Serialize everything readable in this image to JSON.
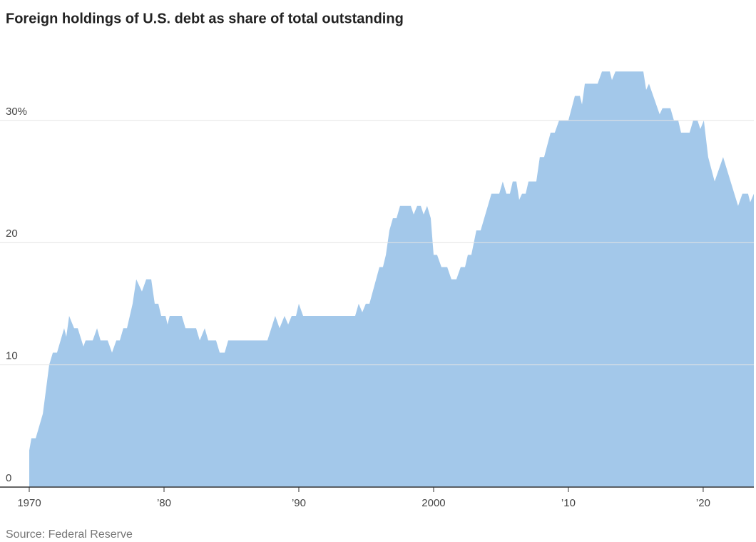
{
  "chart_data": {
    "type": "area",
    "title": "Foreign holdings of U.S. debt as share of total outstanding",
    "source": "Source: Federal Reserve",
    "color": "#a3c8ea",
    "grid": true,
    "xlim": [
      1970,
      2023.76
    ],
    "ylim": [
      0,
      36
    ],
    "xticks": [
      1970,
      {
        "value": 1980,
        "label": "’80"
      },
      {
        "value": 1990,
        "label": "’90"
      },
      2000,
      {
        "value": 2010,
        "label": "’10"
      },
      {
        "value": 2020,
        "label": "’20"
      }
    ],
    "yticks": [
      0,
      10,
      20,
      {
        "value": 30,
        "label": "30%"
      }
    ],
    "x": [
      1970.0,
      1970.16,
      1970.48,
      1971.01,
      1971.48,
      1971.75,
      1972.06,
      1972.59,
      1972.75,
      1972.96,
      1973.33,
      1973.6,
      1974.02,
      1974.18,
      1974.71,
      1975.03,
      1975.29,
      1975.82,
      1976.14,
      1976.46,
      1976.72,
      1976.98,
      1977.25,
      1977.67,
      1977.94,
      1978.36,
      1978.68,
      1979.05,
      1979.31,
      1979.58,
      1979.79,
      1980.11,
      1980.26,
      1980.42,
      1981.32,
      1981.59,
      1982.38,
      1982.65,
      1983.02,
      1983.28,
      1983.86,
      1984.13,
      1984.5,
      1984.76,
      1987.67,
      1988.25,
      1988.57,
      1988.94,
      1989.21,
      1989.47,
      1989.79,
      1990.0,
      1990.32,
      1994.18,
      1994.44,
      1994.71,
      1994.97,
      1995.24,
      1995.98,
      1996.24,
      1996.46,
      1996.72,
      1996.98,
      1997.25,
      1997.51,
      1998.31,
      1998.52,
      1998.78,
      1999.05,
      1999.26,
      1999.52,
      1999.79,
      2000.0,
      2000.26,
      2000.58,
      2001.01,
      2001.32,
      2001.69,
      2002.01,
      2002.33,
      2002.54,
      2002.8,
      2003.17,
      2003.49,
      2004.29,
      2004.87,
      2005.13,
      2005.4,
      2005.66,
      2005.87,
      2006.14,
      2006.35,
      2006.56,
      2006.83,
      2007.04,
      2007.62,
      2007.88,
      2008.2,
      2008.68,
      2008.99,
      2009.31,
      2010.0,
      2010.48,
      2010.85,
      2011.01,
      2011.22,
      2012.17,
      2012.49,
      2013.07,
      2013.23,
      2013.49,
      2015.56,
      2015.77,
      2015.98,
      2016.77,
      2016.98,
      2017.57,
      2017.83,
      2018.15,
      2018.36,
      2018.99,
      2019.26,
      2019.58,
      2019.79,
      2020.05,
      2020.37,
      2020.85,
      2021.48,
      2022.59,
      2022.91,
      2023.33,
      2023.49,
      2023.76
    ],
    "values": [
      3,
      4,
      4,
      6,
      10,
      11,
      11,
      13,
      12.3,
      14,
      13,
      13,
      11.5,
      12,
      12,
      13,
      12,
      12,
      11,
      12,
      12,
      13,
      13,
      15,
      17,
      16,
      17,
      17,
      15,
      15,
      14,
      14,
      13.3,
      14,
      14,
      13,
      13,
      12,
      13,
      12,
      12,
      11,
      11,
      12,
      12,
      14,
      13,
      14,
      13.3,
      14,
      14,
      15,
      14,
      14,
      15,
      14.3,
      15,
      15,
      18,
      18,
      19,
      21,
      22,
      22,
      23,
      23,
      22.3,
      23,
      23,
      22.3,
      23,
      22,
      19,
      19,
      18,
      18,
      17,
      17,
      18,
      18,
      19,
      19,
      21,
      21,
      24,
      24,
      25,
      24,
      24,
      25,
      25,
      23.5,
      24,
      24,
      25,
      25,
      27,
      27,
      29,
      29,
      30,
      30,
      32,
      32,
      31.3,
      33,
      33,
      34,
      34,
      33.3,
      34,
      34,
      32.5,
      33,
      30.5,
      31,
      31,
      30,
      30,
      29,
      29,
      30,
      30,
      29.3,
      30,
      27,
      25,
      27,
      23,
      24,
      24,
      23.3,
      24
    ]
  }
}
